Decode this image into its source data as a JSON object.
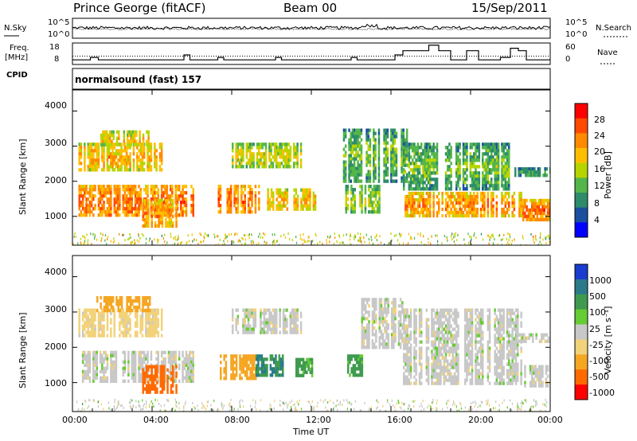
{
  "header": {
    "station": "Prince George (fitACF)",
    "beam": "Beam 00",
    "date": "15/Sep/2011"
  },
  "noise_panel": {
    "left_label": "N.Sky",
    "right_label": "N.Search",
    "left_ticks": [
      "10^5",
      "10^0"
    ],
    "right_ticks": [
      "10^5",
      "10^0"
    ]
  },
  "freq_panel": {
    "left_label": "Freq.",
    "left_unit": "[MHz]",
    "left_ticks": [
      "18",
      "8"
    ],
    "right_label": "Nave",
    "right_ticks": [
      "60",
      "0"
    ]
  },
  "cpid": {
    "label": "CPID",
    "value": "normalsound (fast) 157"
  },
  "power_panel": {
    "ylabel": "Slant Range [km]",
    "yticks": [
      "4000",
      "3000",
      "2000",
      "1000"
    ],
    "cb_label": "Power [dB]",
    "cb_ticks": [
      "28",
      "24",
      "20",
      "16",
      "12",
      "8",
      "4"
    ],
    "cb_colors": [
      "#ff0000",
      "#ff4a00",
      "#ff8a00",
      "#ffbf00",
      "#b8d400",
      "#54b64a",
      "#2e8c6a",
      "#1b4fa0",
      "#0000ff"
    ]
  },
  "velocity_panel": {
    "ylabel": "Slant Range [km]",
    "yticks": [
      "4000",
      "3000",
      "2000",
      "1000"
    ],
    "cb_label": "Velocity [m s⁻¹]",
    "cb_ticks": [
      "1000",
      "500",
      "100",
      "25",
      "-25",
      "-100",
      "-500",
      "-1000"
    ],
    "cb_colors": [
      "#1a3ccf",
      "#2b7a8a",
      "#3f9a4f",
      "#66cc33",
      "#c8c8c8",
      "#f2d27a",
      "#f5a623",
      "#ff6a00",
      "#ff0000"
    ]
  },
  "xaxis": {
    "label": "Time UT",
    "ticks": [
      "00:00",
      "04:00",
      "08:00",
      "12:00",
      "16:00",
      "20:00",
      "00:00"
    ]
  },
  "chart_data": {
    "type": "heatmap",
    "title": "Prince George (fitACF) Beam 00 15/Sep/2011",
    "x_unit": "hours UT",
    "xlim": [
      0,
      24
    ],
    "ylim": [
      180,
      4600
    ],
    "power_regions": [
      {
        "t0": 0.3,
        "t1": 6.1,
        "r0": 1000,
        "r1": 1900,
        "db": 20
      },
      {
        "t0": 0.3,
        "t1": 4.5,
        "r0": 2300,
        "r1": 3100,
        "db": 16
      },
      {
        "t0": 1.4,
        "t1": 3.8,
        "r0": 3000,
        "r1": 3450,
        "db": 14
      },
      {
        "t0": 3.5,
        "t1": 5.2,
        "r0": 700,
        "r1": 1500,
        "db": 18
      },
      {
        "t0": 7.3,
        "t1": 9.5,
        "r0": 1100,
        "r1": 1900,
        "db": 20
      },
      {
        "t0": 8.0,
        "t1": 11.5,
        "r0": 2400,
        "r1": 3100,
        "db": 12
      },
      {
        "t0": 9.6,
        "t1": 12.2,
        "r0": 1200,
        "r1": 1800,
        "db": 16
      },
      {
        "t0": 13.7,
        "t1": 15.5,
        "r0": 1100,
        "r1": 1900,
        "db": 10
      },
      {
        "t0": 13.5,
        "t1": 16.8,
        "r0": 2000,
        "r1": 3500,
        "db": 8
      },
      {
        "t0": 16.6,
        "t1": 22.5,
        "r0": 1000,
        "r1": 1700,
        "db": 18
      },
      {
        "t0": 16.6,
        "t1": 22.0,
        "r0": 1800,
        "r1": 3100,
        "db": 8
      },
      {
        "t0": 22.6,
        "t1": 24.0,
        "r0": 950,
        "r1": 1500,
        "db": 20
      },
      {
        "t0": 22.2,
        "t1": 24.0,
        "r0": 2150,
        "r1": 2400,
        "db": 6
      }
    ],
    "velocity_regions": [
      {
        "t0": 0.3,
        "t1": 6.1,
        "r0": 1000,
        "r1": 1900,
        "v": 0
      },
      {
        "t0": 0.3,
        "t1": 4.5,
        "r0": 2300,
        "r1": 3100,
        "v": -50
      },
      {
        "t0": 1.2,
        "t1": 3.9,
        "r0": 3000,
        "r1": 3450,
        "v": -150
      },
      {
        "t0": 3.5,
        "t1": 5.2,
        "r0": 700,
        "r1": 1500,
        "v": -300
      },
      {
        "t0": 7.4,
        "t1": 9.2,
        "r0": 1100,
        "r1": 1800,
        "v": -200
      },
      {
        "t0": 9.2,
        "t1": 10.6,
        "r0": 1200,
        "r1": 1800,
        "v": 200
      },
      {
        "t0": 11.2,
        "t1": 12.1,
        "r0": 1200,
        "r1": 1700,
        "v": 80
      },
      {
        "t0": 8.0,
        "t1": 11.5,
        "r0": 2400,
        "r1": 3100,
        "v": 0
      },
      {
        "t0": 13.8,
        "t1": 14.6,
        "r0": 1200,
        "r1": 1800,
        "v": 80
      },
      {
        "t0": 14.5,
        "t1": 16.6,
        "r0": 2000,
        "r1": 3400,
        "v": 0
      },
      {
        "t0": 16.6,
        "t1": 22.5,
        "r0": 1000,
        "r1": 3100,
        "v": 0
      },
      {
        "t0": 22.6,
        "t1": 24.0,
        "r0": 950,
        "r1": 1500,
        "v": 0
      },
      {
        "t0": 22.2,
        "t1": 24.0,
        "r0": 2150,
        "r1": 2400,
        "v": 0
      }
    ],
    "nave_steps": [
      {
        "t": 0.0,
        "v": 10
      },
      {
        "t": 0.9,
        "v": 18
      },
      {
        "t": 1.3,
        "v": 10
      },
      {
        "t": 5.6,
        "v": 26
      },
      {
        "t": 5.9,
        "v": 10
      },
      {
        "t": 7.3,
        "v": 18
      },
      {
        "t": 7.6,
        "v": 10
      },
      {
        "t": 10.2,
        "v": 18
      },
      {
        "t": 10.5,
        "v": 10
      },
      {
        "t": 14.0,
        "v": 18
      },
      {
        "t": 14.3,
        "v": 10
      },
      {
        "t": 16.2,
        "v": 26
      },
      {
        "t": 16.6,
        "v": 40
      },
      {
        "t": 17.9,
        "v": 58
      },
      {
        "t": 18.4,
        "v": 40
      },
      {
        "t": 19.0,
        "v": 10
      },
      {
        "t": 19.8,
        "v": 40
      },
      {
        "t": 20.4,
        "v": 10
      },
      {
        "t": 21.5,
        "v": 18
      },
      {
        "t": 22.0,
        "v": 48
      },
      {
        "t": 22.4,
        "v": 40
      },
      {
        "t": 22.8,
        "v": 10
      },
      {
        "t": 23.2,
        "v": 10
      }
    ],
    "freq_mhz": 13,
    "noise_sky_log": 2.6,
    "noise_search_log": 2.3
  }
}
